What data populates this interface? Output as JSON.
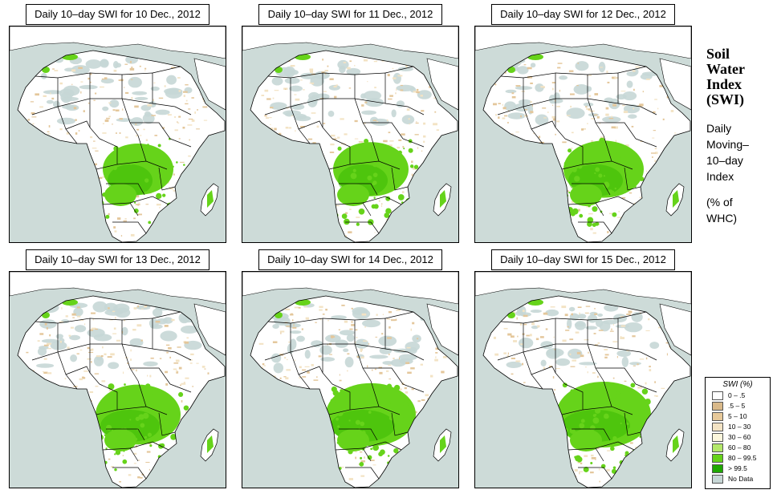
{
  "panels": [
    {
      "title": "Daily 10–day SWI for  10 Dec., 2012",
      "wet_level": 0
    },
    {
      "title": "Daily 10–day SWI for  11 Dec., 2012",
      "wet_level": 1
    },
    {
      "title": "Daily 10–day SWI for  12 Dec., 2012",
      "wet_level": 2
    },
    {
      "title": "Daily 10–day SWI for  13 Dec., 2012",
      "wet_level": 3
    },
    {
      "title": "Daily 10–day SWI for  14 Dec., 2012",
      "wet_level": 4
    },
    {
      "title": "Daily 10–day SWI for  15 Dec., 2012",
      "wet_level": 5
    }
  ],
  "side": {
    "title_lines": [
      "Soil",
      "Water",
      "Index",
      "(SWI)"
    ],
    "subtitle_lines": [
      "Daily",
      "Moving–",
      "10–day",
      "Index"
    ],
    "unit_lines": [
      "(% of",
      " WHC)"
    ]
  },
  "legend": {
    "title": "SWI (%)",
    "items": [
      {
        "label": "0 – .5",
        "color": "#ffffff"
      },
      {
        "label": ".5 – 5",
        "color": "#d9b98a"
      },
      {
        "label": "5 – 10",
        "color": "#e7c99a"
      },
      {
        "label": "10 – 30",
        "color": "#f3e3c4"
      },
      {
        "label": "30 – 60",
        "color": "#fbf6dc"
      },
      {
        "label": "60 – 80",
        "color": "#b4e86a"
      },
      {
        "label": "80 – 99.5",
        "color": "#66d31a"
      },
      {
        "label": "> 99.5",
        "color": "#1fa800"
      },
      {
        "label": "No Data",
        "color": "#c7d7d6"
      }
    ]
  },
  "colors": {
    "ocean": "#cddbd8",
    "land": "#ffffff",
    "dry": "#e4c79b",
    "dry_light": "#f3e3c4",
    "wet": "#66d31a",
    "wet_dark": "#36b800",
    "nodata": "#c7d7d6"
  }
}
